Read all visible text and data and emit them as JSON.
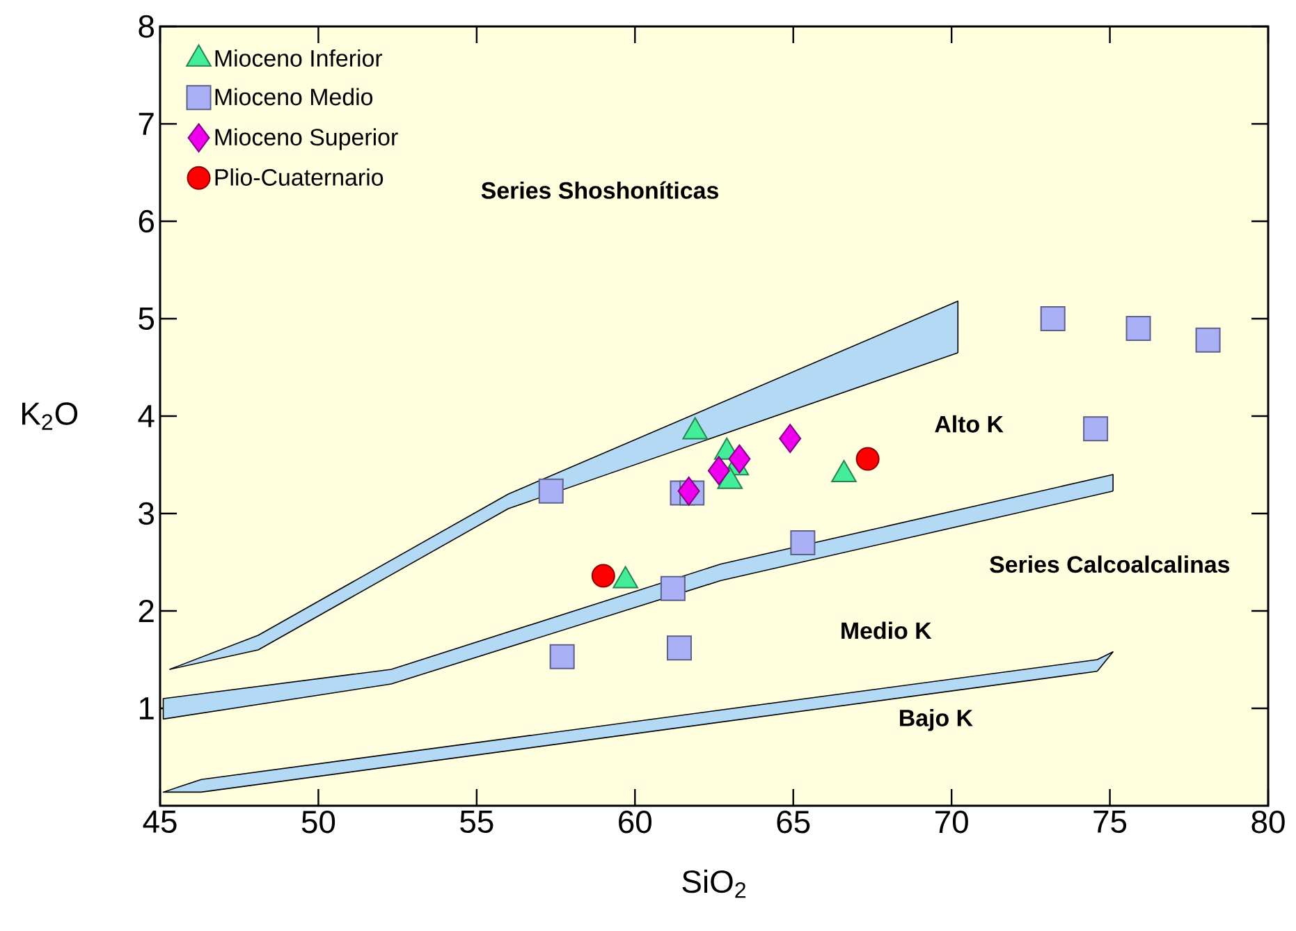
{
  "chart_data": {
    "type": "scatter",
    "xlabel": "SiO$_{2}$",
    "ylabel": "K$_{2}$O",
    "xlim": [
      45,
      80
    ],
    "xticks": [
      45,
      50,
      55,
      60,
      65,
      70,
      75,
      80
    ],
    "ylim": [
      0,
      8
    ],
    "yticks": [
      1,
      2,
      3,
      4,
      5,
      6,
      7,
      8
    ],
    "grid": false,
    "legend": "top left",
    "series": [
      {
        "type": "area",
        "color": "#b4d9f5",
        "x": [
          45.3,
          48.1,
          56.0,
          70.2
        ],
        "values": [
          1.4,
          1.75,
          3.2,
          5.18
        ]
      },
      {
        "type": "line",
        "color": "#000000",
        "x": [
          45.3,
          48.1,
          56.0,
          70.2
        ],
        "values": [
          1.4,
          1.6,
          3.05,
          4.65
        ]
      },
      {
        "type": "area",
        "color": "#b4d9f5",
        "x": [
          45.1,
          52.3,
          62.7,
          75.1
        ],
        "values": [
          1.1,
          1.4,
          2.48,
          3.4
        ]
      },
      {
        "type": "line",
        "color": "#000000",
        "x": [
          45.1,
          52.3,
          62.7,
          75.1
        ],
        "values": [
          0.89,
          1.25,
          2.31,
          3.23
        ]
      },
      {
        "type": "area",
        "color": "#b4d9f5",
        "x": [
          45.1,
          46.3,
          74.6,
          75.1
        ],
        "values": [
          0.14,
          0.27,
          1.5,
          1.58
        ]
      },
      {
        "type": "line",
        "color": "#000000",
        "x": [
          46.3,
          74.6
        ],
        "values": [
          0.14,
          1.38
        ]
      },
      {
        "name": "Mioceno Inferior",
        "marker": "triangle",
        "color": "#44ee99",
        "x": [
          61.9,
          62.9,
          63.2,
          63.0,
          59.7,
          66.6
        ],
        "values": [
          3.84,
          3.63,
          3.47,
          3.33,
          2.31,
          3.4
        ]
      },
      {
        "name": "Mioceno Medio",
        "marker": "square",
        "color": "#aab0f5",
        "x": [
          57.35,
          61.5,
          61.8,
          65.3,
          61.2,
          61.4,
          57.7,
          73.2,
          75.9,
          78.1,
          74.55
        ],
        "values": [
          3.23,
          3.21,
          3.21,
          2.7,
          2.23,
          1.62,
          1.53,
          5.0,
          4.9,
          4.78,
          3.87
        ]
      },
      {
        "name": "Mioceno Superior",
        "marker": "diamond",
        "color": "#ee00ee",
        "x": [
          61.7,
          62.65,
          63.3,
          64.9
        ],
        "values": [
          3.23,
          3.44,
          3.56,
          3.77
        ]
      },
      {
        "name": "Plio-Cuaternario",
        "marker": "circle",
        "color": "#ff0000",
        "x": [
          59.0,
          67.35
        ],
        "values": [
          2.36,
          3.56
        ]
      }
    ],
    "annotations": [
      "Series Shoshoníticas",
      "Alto K",
      "Series Calcoalcalinas",
      "Medio K",
      "Bajo K"
    ]
  }
}
